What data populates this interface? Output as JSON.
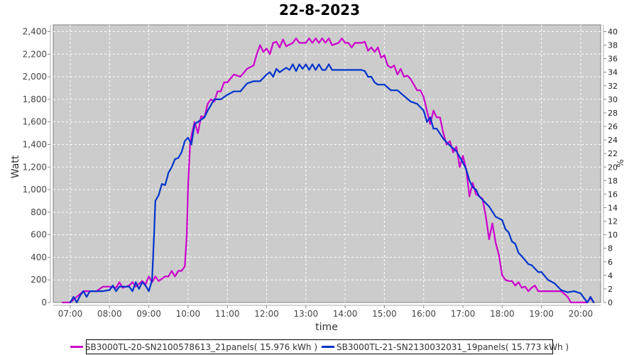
{
  "chart_data": {
    "type": "line",
    "title": "22-8-2023",
    "xlabel": "time",
    "ylabel": "Watt",
    "y2label": "%",
    "ylim": [
      0,
      2400
    ],
    "y2lim": [
      0,
      40
    ],
    "xlim": [
      "06:40",
      "20:40"
    ],
    "grid": true,
    "legend_position": "bottom",
    "xticks": [
      "07:00",
      "08:00",
      "09:00",
      "10:00",
      "11:00",
      "12:00",
      "13:00",
      "14:00",
      "15:00",
      "16:00",
      "17:00",
      "18:00",
      "19:00",
      "20:00"
    ],
    "yticks": [
      "0",
      "200",
      "400",
      "600",
      "800",
      "1,000",
      "1,200",
      "1,400",
      "1,600",
      "1,800",
      "2,000",
      "2,200",
      "2,400"
    ],
    "y2ticks": [
      "0",
      "2",
      "4",
      "6",
      "8",
      "10",
      "12",
      "14",
      "16",
      "18",
      "20",
      "22",
      "24",
      "26",
      "28",
      "30",
      "32",
      "34",
      "36",
      "38",
      "40"
    ],
    "series": [
      {
        "name": "SB3000TL-20-SN2100578613_21panels( 15.976 kWh )",
        "color": "#cc00cc",
        "points": [
          [
            "06:48",
            0
          ],
          [
            "07:00",
            0
          ],
          [
            "07:10",
            50
          ],
          [
            "07:20",
            100
          ],
          [
            "07:30",
            100
          ],
          [
            "07:40",
            100
          ],
          [
            "07:50",
            140
          ],
          [
            "08:00",
            140
          ],
          [
            "08:10",
            130
          ],
          [
            "08:15",
            180
          ],
          [
            "08:20",
            130
          ],
          [
            "08:30",
            150
          ],
          [
            "08:35",
            180
          ],
          [
            "08:40",
            140
          ],
          [
            "08:50",
            190
          ],
          [
            "08:55",
            160
          ],
          [
            "09:00",
            230
          ],
          [
            "09:05",
            180
          ],
          [
            "09:10",
            230
          ],
          [
            "09:15",
            190
          ],
          [
            "09:25",
            230
          ],
          [
            "09:30",
            230
          ],
          [
            "09:35",
            280
          ],
          [
            "09:40",
            230
          ],
          [
            "09:45",
            280
          ],
          [
            "09:50",
            280
          ],
          [
            "09:55",
            320
          ],
          [
            "09:58",
            600
          ],
          [
            "10:00",
            1030
          ],
          [
            "10:03",
            1400
          ],
          [
            "10:06",
            1500
          ],
          [
            "10:10",
            1600
          ],
          [
            "10:15",
            1500
          ],
          [
            "10:20",
            1650
          ],
          [
            "10:25",
            1640
          ],
          [
            "10:30",
            1760
          ],
          [
            "10:35",
            1800
          ],
          [
            "10:40",
            1780
          ],
          [
            "10:45",
            1870
          ],
          [
            "10:50",
            1870
          ],
          [
            "10:55",
            1950
          ],
          [
            "11:00",
            1950
          ],
          [
            "11:10",
            2020
          ],
          [
            "11:20",
            2000
          ],
          [
            "11:30",
            2070
          ],
          [
            "11:40",
            2100
          ],
          [
            "11:45",
            2200
          ],
          [
            "11:50",
            2280
          ],
          [
            "11:55",
            2220
          ],
          [
            "12:00",
            2250
          ],
          [
            "12:05",
            2200
          ],
          [
            "12:10",
            2300
          ],
          [
            "12:15",
            2310
          ],
          [
            "12:20",
            2260
          ],
          [
            "12:25",
            2330
          ],
          [
            "12:30",
            2270
          ],
          [
            "12:40",
            2300
          ],
          [
            "12:45",
            2340
          ],
          [
            "12:50",
            2300
          ],
          [
            "13:00",
            2300
          ],
          [
            "13:05",
            2340
          ],
          [
            "13:10",
            2300
          ],
          [
            "13:15",
            2340
          ],
          [
            "13:20",
            2300
          ],
          [
            "13:25",
            2340
          ],
          [
            "13:30",
            2300
          ],
          [
            "13:35",
            2340
          ],
          [
            "13:40",
            2280
          ],
          [
            "13:50",
            2300
          ],
          [
            "13:55",
            2340
          ],
          [
            "14:00",
            2300
          ],
          [
            "14:05",
            2300
          ],
          [
            "14:10",
            2260
          ],
          [
            "14:15",
            2300
          ],
          [
            "14:25",
            2300
          ],
          [
            "14:30",
            2310
          ],
          [
            "14:35",
            2230
          ],
          [
            "14:40",
            2260
          ],
          [
            "14:45",
            2220
          ],
          [
            "14:50",
            2260
          ],
          [
            "14:55",
            2170
          ],
          [
            "15:00",
            2190
          ],
          [
            "15:05",
            2100
          ],
          [
            "15:10",
            2080
          ],
          [
            "15:15",
            2100
          ],
          [
            "15:20",
            2020
          ],
          [
            "15:25",
            2070
          ],
          [
            "15:30",
            2000
          ],
          [
            "15:35",
            2010
          ],
          [
            "15:40",
            1980
          ],
          [
            "15:45",
            1930
          ],
          [
            "15:50",
            1880
          ],
          [
            "15:55",
            1880
          ],
          [
            "16:00",
            1820
          ],
          [
            "16:05",
            1700
          ],
          [
            "16:10",
            1580
          ],
          [
            "16:15",
            1700
          ],
          [
            "16:20",
            1640
          ],
          [
            "16:25",
            1640
          ],
          [
            "16:30",
            1500
          ],
          [
            "16:35",
            1400
          ],
          [
            "16:40",
            1430
          ],
          [
            "16:45",
            1330
          ],
          [
            "16:50",
            1380
          ],
          [
            "16:55",
            1200
          ],
          [
            "17:00",
            1300
          ],
          [
            "17:05",
            1180
          ],
          [
            "17:10",
            940
          ],
          [
            "17:15",
            1060
          ],
          [
            "17:20",
            960
          ],
          [
            "17:25",
            940
          ],
          [
            "17:30",
            920
          ],
          [
            "17:35",
            760
          ],
          [
            "17:40",
            560
          ],
          [
            "17:45",
            700
          ],
          [
            "17:50",
            530
          ],
          [
            "17:55",
            420
          ],
          [
            "18:00",
            240
          ],
          [
            "18:05",
            200
          ],
          [
            "18:10",
            190
          ],
          [
            "18:15",
            190
          ],
          [
            "18:20",
            150
          ],
          [
            "18:25",
            180
          ],
          [
            "18:30",
            130
          ],
          [
            "18:35",
            140
          ],
          [
            "18:40",
            100
          ],
          [
            "18:45",
            130
          ],
          [
            "18:50",
            150
          ],
          [
            "18:55",
            100
          ],
          [
            "19:00",
            100
          ],
          [
            "19:30",
            100
          ],
          [
            "19:40",
            50
          ],
          [
            "19:45",
            0
          ],
          [
            "20:00",
            0
          ],
          [
            "20:10",
            0
          ],
          [
            "20:15",
            40
          ],
          [
            "20:20",
            0
          ]
        ]
      },
      {
        "name": "SB3000TL-21-SN2130032031_19panels( 15.773 kWh )",
        "color": "#0033cc",
        "points": [
          [
            "07:00",
            0
          ],
          [
            "07:05",
            50
          ],
          [
            "07:10",
            0
          ],
          [
            "07:15",
            60
          ],
          [
            "07:20",
            100
          ],
          [
            "07:25",
            50
          ],
          [
            "07:30",
            100
          ],
          [
            "07:40",
            100
          ],
          [
            "07:50",
            100
          ],
          [
            "08:00",
            110
          ],
          [
            "08:05",
            150
          ],
          [
            "08:10",
            100
          ],
          [
            "08:15",
            140
          ],
          [
            "08:20",
            140
          ],
          [
            "08:30",
            140
          ],
          [
            "08:35",
            100
          ],
          [
            "08:40",
            180
          ],
          [
            "08:45",
            120
          ],
          [
            "08:50",
            180
          ],
          [
            "08:55",
            150
          ],
          [
            "09:00",
            100
          ],
          [
            "09:05",
            200
          ],
          [
            "09:08",
            600
          ],
          [
            "09:10",
            900
          ],
          [
            "09:15",
            950
          ],
          [
            "09:20",
            1050
          ],
          [
            "09:25",
            1040
          ],
          [
            "09:30",
            1150
          ],
          [
            "09:35",
            1200
          ],
          [
            "09:40",
            1270
          ],
          [
            "09:45",
            1280
          ],
          [
            "09:50",
            1330
          ],
          [
            "09:55",
            1430
          ],
          [
            "10:00",
            1460
          ],
          [
            "10:05",
            1400
          ],
          [
            "10:10",
            1580
          ],
          [
            "10:15",
            1600
          ],
          [
            "10:25",
            1640
          ],
          [
            "10:30",
            1700
          ],
          [
            "10:40",
            1800
          ],
          [
            "10:50",
            1800
          ],
          [
            "11:00",
            1840
          ],
          [
            "11:10",
            1870
          ],
          [
            "11:20",
            1870
          ],
          [
            "11:30",
            1940
          ],
          [
            "11:40",
            1960
          ],
          [
            "11:50",
            1960
          ],
          [
            "12:00",
            2020
          ],
          [
            "12:05",
            2040
          ],
          [
            "12:10",
            2000
          ],
          [
            "12:15",
            2070
          ],
          [
            "12:20",
            2040
          ],
          [
            "12:30",
            2080
          ],
          [
            "12:35",
            2060
          ],
          [
            "12:40",
            2110
          ],
          [
            "12:45",
            2050
          ],
          [
            "12:50",
            2110
          ],
          [
            "12:55",
            2070
          ],
          [
            "13:00",
            2110
          ],
          [
            "13:05",
            2060
          ],
          [
            "13:10",
            2110
          ],
          [
            "13:15",
            2060
          ],
          [
            "13:20",
            2110
          ],
          [
            "13:25",
            2060
          ],
          [
            "13:30",
            2060
          ],
          [
            "13:35",
            2110
          ],
          [
            "13:40",
            2060
          ],
          [
            "13:50",
            2060
          ],
          [
            "14:00",
            2060
          ],
          [
            "14:10",
            2060
          ],
          [
            "14:20",
            2060
          ],
          [
            "14:25",
            2060
          ],
          [
            "14:30",
            2050
          ],
          [
            "14:35",
            2000
          ],
          [
            "14:40",
            2000
          ],
          [
            "14:45",
            1950
          ],
          [
            "14:50",
            1930
          ],
          [
            "15:00",
            1930
          ],
          [
            "15:10",
            1880
          ],
          [
            "15:20",
            1880
          ],
          [
            "15:30",
            1830
          ],
          [
            "15:40",
            1780
          ],
          [
            "15:50",
            1760
          ],
          [
            "16:00",
            1700
          ],
          [
            "16:05",
            1600
          ],
          [
            "16:10",
            1640
          ],
          [
            "16:15",
            1540
          ],
          [
            "16:20",
            1540
          ],
          [
            "16:30",
            1450
          ],
          [
            "16:40",
            1390
          ],
          [
            "16:50",
            1340
          ],
          [
            "17:00",
            1240
          ],
          [
            "17:05",
            1180
          ],
          [
            "17:10",
            1080
          ],
          [
            "17:15",
            1020
          ],
          [
            "17:20",
            1000
          ],
          [
            "17:25",
            940
          ],
          [
            "17:35",
            880
          ],
          [
            "17:40",
            850
          ],
          [
            "17:50",
            760
          ],
          [
            "18:00",
            730
          ],
          [
            "18:05",
            650
          ],
          [
            "18:10",
            620
          ],
          [
            "18:15",
            540
          ],
          [
            "18:20",
            520
          ],
          [
            "18:25",
            440
          ],
          [
            "18:30",
            410
          ],
          [
            "18:40",
            340
          ],
          [
            "18:45",
            330
          ],
          [
            "18:55",
            270
          ],
          [
            "19:00",
            270
          ],
          [
            "19:10",
            200
          ],
          [
            "19:20",
            170
          ],
          [
            "19:30",
            110
          ],
          [
            "19:40",
            90
          ],
          [
            "19:50",
            100
          ],
          [
            "20:00",
            80
          ],
          [
            "20:10",
            0
          ],
          [
            "20:15",
            50
          ],
          [
            "20:20",
            0
          ]
        ]
      }
    ]
  }
}
